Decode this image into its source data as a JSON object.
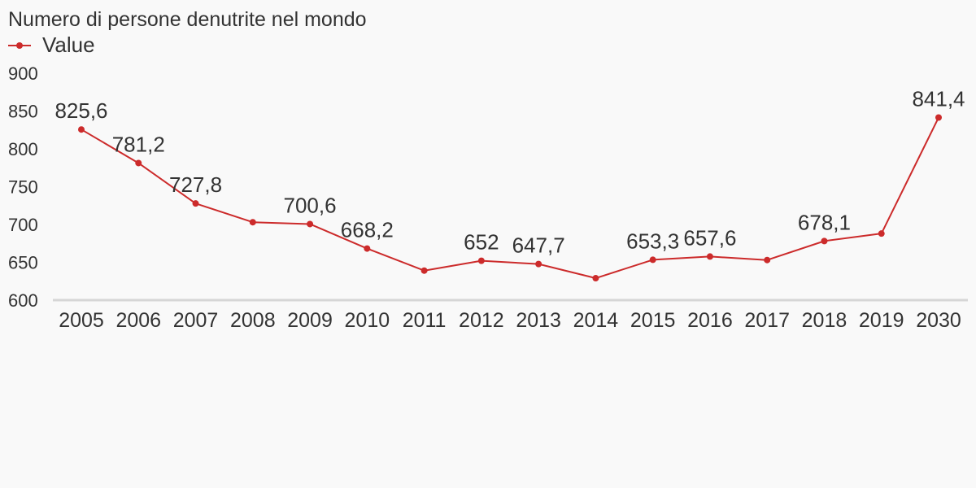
{
  "chart_data": {
    "type": "line",
    "title": "Numero di persone denutrite nel mondo",
    "xlabel": "",
    "ylabel": "",
    "ylim": [
      600,
      900
    ],
    "yticks": [
      600,
      650,
      700,
      750,
      800,
      850,
      900
    ],
    "categories": [
      "2005",
      "2006",
      "2007",
      "2008",
      "2009",
      "2010",
      "2011",
      "2012",
      "2013",
      "2014",
      "2015",
      "2016",
      "2017",
      "2018",
      "2019",
      "2030"
    ],
    "series": [
      {
        "name": "Value",
        "color": "#cc2b2b",
        "values": [
          825.6,
          781.2,
          727.8,
          703.0,
          700.6,
          668.2,
          639.0,
          652.0,
          647.7,
          629.0,
          653.3,
          657.6,
          653.0,
          678.1,
          688.0,
          841.4
        ],
        "labels": [
          "825,6",
          "781,2",
          "727,8",
          "",
          "700,6",
          "668,2",
          "",
          "652",
          "647,7",
          "",
          "653,3",
          "657,6",
          "",
          "678,1",
          "",
          "841,4"
        ]
      }
    ],
    "grid": false,
    "legend_position": "top-left"
  }
}
